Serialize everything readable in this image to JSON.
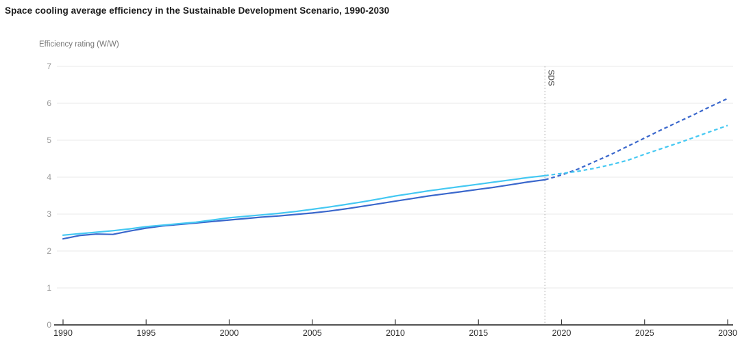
{
  "title": "Space cooling average efficiency in the Sustainable Development Scenario, 1990-2030",
  "chart_data": {
    "type": "line",
    "title": "Space cooling average efficiency in the Sustainable Development Scenario, 1990-2030",
    "xlabel": "",
    "ylabel": "Efficiency rating (W/W)",
    "xlim": [
      1990,
      2030
    ],
    "ylim": [
      0,
      7
    ],
    "x_ticks": [
      1990,
      1995,
      2000,
      2005,
      2010,
      2015,
      2020,
      2025,
      2030
    ],
    "y_ticks": [
      0,
      1,
      2,
      3,
      4,
      5,
      6,
      7
    ],
    "grid": "horizontal",
    "legend": "none",
    "annotation": {
      "label": "SDS",
      "x": 2019,
      "style": "dotted-vertical-line"
    },
    "projection_start_year": 2019,
    "x": [
      1990,
      1991,
      1992,
      1993,
      1994,
      1995,
      1996,
      1997,
      1998,
      1999,
      2000,
      2001,
      2002,
      2003,
      2004,
      2005,
      2006,
      2007,
      2008,
      2009,
      2010,
      2011,
      2012,
      2013,
      2014,
      2015,
      2016,
      2017,
      2018,
      2019,
      2020,
      2021,
      2022,
      2023,
      2024,
      2025,
      2026,
      2027,
      2028,
      2029,
      2030
    ],
    "series": [
      {
        "id": "dark-blue-line",
        "color": "#3A67CC",
        "solid_until": 2019,
        "values": [
          2.33,
          2.42,
          2.46,
          2.45,
          2.54,
          2.62,
          2.68,
          2.72,
          2.76,
          2.8,
          2.84,
          2.88,
          2.92,
          2.95,
          2.99,
          3.03,
          3.08,
          3.14,
          3.21,
          3.28,
          3.35,
          3.42,
          3.49,
          3.55,
          3.61,
          3.67,
          3.73,
          3.8,
          3.87,
          3.93,
          4.06,
          4.22,
          4.42,
          4.62,
          4.84,
          5.06,
          5.28,
          5.49,
          5.7,
          5.92,
          6.13
        ]
      },
      {
        "id": "light-blue-line",
        "color": "#44C8F2",
        "solid_until": 2019,
        "values": [
          2.43,
          2.47,
          2.51,
          2.55,
          2.6,
          2.66,
          2.7,
          2.74,
          2.78,
          2.84,
          2.9,
          2.94,
          2.98,
          3.02,
          3.07,
          3.13,
          3.19,
          3.26,
          3.33,
          3.41,
          3.49,
          3.56,
          3.63,
          3.69,
          3.75,
          3.81,
          3.87,
          3.93,
          3.99,
          4.04,
          4.1,
          4.16,
          4.24,
          4.34,
          4.46,
          4.62,
          4.77,
          4.92,
          5.08,
          5.24,
          5.4
        ]
      }
    ],
    "style_colors": {
      "grid": "#e9e9e9",
      "axis": "#3a3a3a",
      "y_tick_label": "#9a9a9a",
      "x_tick_label": "#303030",
      "sds_line": "#9e9e9e",
      "sds_label": "#333333"
    }
  }
}
